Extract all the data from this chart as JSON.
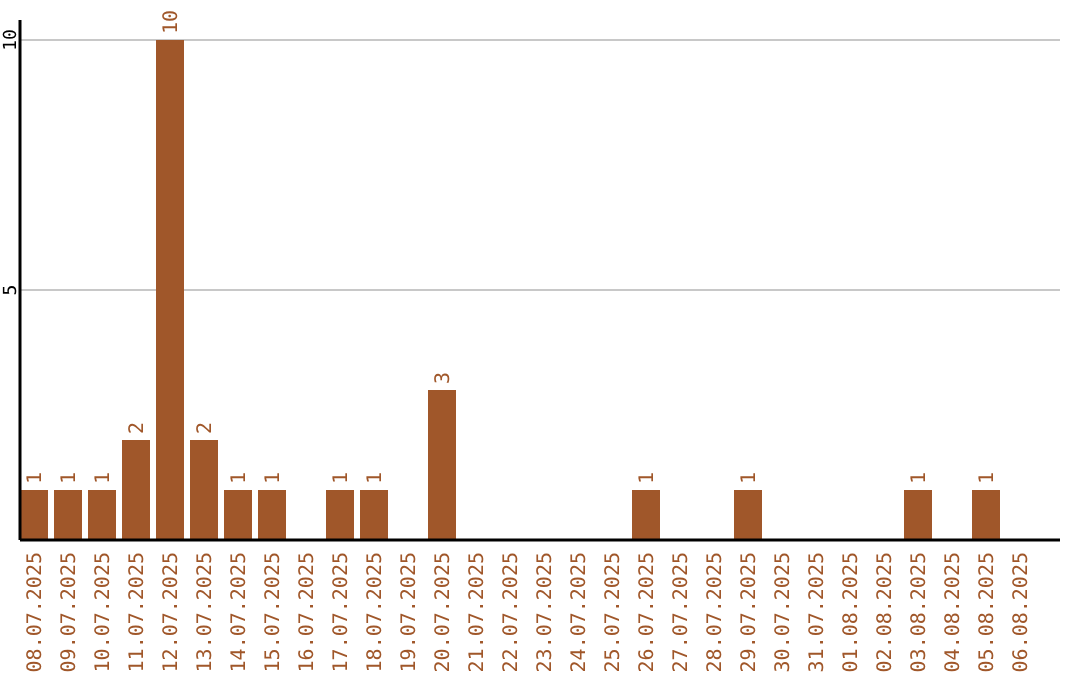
{
  "chart_data": {
    "type": "bar",
    "categories": [
      "08.07.2025",
      "09.07.2025",
      "10.07.2025",
      "11.07.2025",
      "12.07.2025",
      "13.07.2025",
      "14.07.2025",
      "15.07.2025",
      "16.07.2025",
      "17.07.2025",
      "18.07.2025",
      "19.07.2025",
      "20.07.2025",
      "21.07.2025",
      "22.07.2025",
      "23.07.2025",
      "24.07.2025",
      "25.07.2025",
      "26.07.2025",
      "27.07.2025",
      "28.07.2025",
      "29.07.2025",
      "30.07.2025",
      "31.07.2025",
      "01.08.2025",
      "02.08.2025",
      "03.08.2025",
      "04.08.2025",
      "05.08.2025",
      "06.08.2025"
    ],
    "values": [
      1,
      1,
      1,
      2,
      10,
      2,
      1,
      1,
      0,
      1,
      1,
      0,
      3,
      0,
      0,
      0,
      0,
      0,
      1,
      0,
      0,
      1,
      0,
      0,
      0,
      0,
      1,
      0,
      1,
      0
    ],
    "value_labels": [
      "1",
      "1",
      "1",
      "2",
      "10",
      "2",
      "1",
      "1",
      null,
      "1",
      "1",
      null,
      "3",
      null,
      null,
      null,
      null,
      null,
      "1",
      null,
      null,
      "1",
      null,
      null,
      null,
      null,
      "1",
      null,
      "1",
      null
    ],
    "color": "#a0572a",
    "ylim": [
      0,
      10.4
    ],
    "yticks": [
      5,
      10
    ],
    "grid": "y"
  }
}
